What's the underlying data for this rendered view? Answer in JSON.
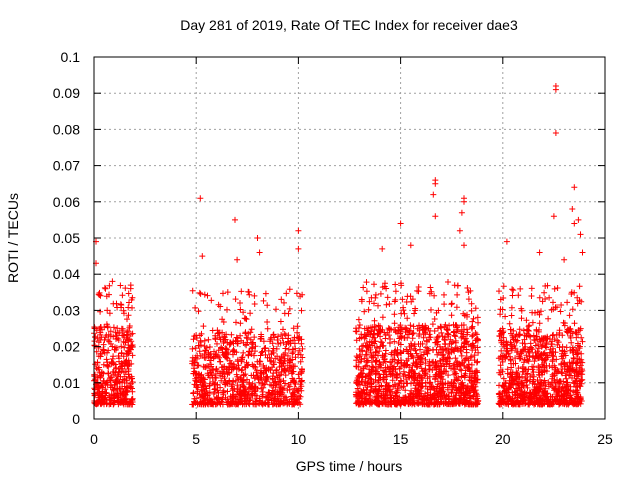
{
  "chart_data": {
    "type": "scatter",
    "title": "Day 281 of 2019, Rate Of TEC Index for receiver dae3",
    "xlabel": "GPS time / hours",
    "ylabel": "ROTI / TECUs",
    "xlim": [
      0,
      25
    ],
    "ylim": [
      0,
      0.1
    ],
    "grid": true,
    "marker": "+",
    "color": "#ff0000",
    "xticks": [
      0,
      5,
      10,
      15,
      20,
      25
    ],
    "xtick_labels": [
      "0",
      "5",
      "10",
      "15",
      "20",
      "25"
    ],
    "yticks": [
      0,
      0.01,
      0.02,
      0.03,
      0.04,
      0.05,
      0.06,
      0.07,
      0.08,
      0.09,
      0.1
    ],
    "ytick_labels": [
      "0",
      "0.01",
      "0.02",
      "0.03",
      "0.04",
      "0.05",
      "0.06",
      "0.07",
      "0.08",
      "0.09",
      "0.1"
    ],
    "series": [
      {
        "name": "ROTI",
        "segments": [
          {
            "x_range": [
              0.0,
              1.9
            ],
            "y_min": 0.004,
            "y_max": 0.026,
            "count": 420
          },
          {
            "x_range": [
              4.8,
              10.2
            ],
            "y_min": 0.004,
            "y_max": 0.024,
            "count": 900
          },
          {
            "x_range": [
              12.8,
              18.8
            ],
            "y_min": 0.004,
            "y_max": 0.026,
            "count": 1300
          },
          {
            "x_range": [
              19.8,
              23.9
            ],
            "y_min": 0.004,
            "y_max": 0.025,
            "count": 900
          }
        ],
        "notable_points": [
          {
            "x": 0.1,
            "y": 0.049
          },
          {
            "x": 0.1,
            "y": 0.043
          },
          {
            "x": 0.9,
            "y": 0.038
          },
          {
            "x": 1.8,
            "y": 0.037
          },
          {
            "x": 5.2,
            "y": 0.061
          },
          {
            "x": 5.3,
            "y": 0.045
          },
          {
            "x": 6.9,
            "y": 0.055
          },
          {
            "x": 7.0,
            "y": 0.044
          },
          {
            "x": 8.0,
            "y": 0.05
          },
          {
            "x": 8.1,
            "y": 0.046
          },
          {
            "x": 10.0,
            "y": 0.052
          },
          {
            "x": 10.0,
            "y": 0.047
          },
          {
            "x": 14.1,
            "y": 0.047
          },
          {
            "x": 15.0,
            "y": 0.054
          },
          {
            "x": 15.5,
            "y": 0.048
          },
          {
            "x": 16.7,
            "y": 0.066
          },
          {
            "x": 16.7,
            "y": 0.065
          },
          {
            "x": 16.6,
            "y": 0.062
          },
          {
            "x": 16.7,
            "y": 0.056
          },
          {
            "x": 18.1,
            "y": 0.061
          },
          {
            "x": 18.1,
            "y": 0.06
          },
          {
            "x": 18.0,
            "y": 0.057
          },
          {
            "x": 17.9,
            "y": 0.052
          },
          {
            "x": 18.1,
            "y": 0.048
          },
          {
            "x": 20.2,
            "y": 0.049
          },
          {
            "x": 21.8,
            "y": 0.046
          },
          {
            "x": 22.6,
            "y": 0.092
          },
          {
            "x": 22.6,
            "y": 0.091
          },
          {
            "x": 22.6,
            "y": 0.079
          },
          {
            "x": 22.5,
            "y": 0.056
          },
          {
            "x": 23.5,
            "y": 0.064
          },
          {
            "x": 23.4,
            "y": 0.058
          },
          {
            "x": 23.5,
            "y": 0.054
          },
          {
            "x": 23.7,
            "y": 0.055
          },
          {
            "x": 23.8,
            "y": 0.051
          },
          {
            "x": 23.9,
            "y": 0.046
          },
          {
            "x": 23.0,
            "y": 0.044
          },
          {
            "x": 19.9,
            "y": 0.033
          },
          {
            "x": 13.1,
            "y": 0.033
          }
        ]
      }
    ]
  }
}
